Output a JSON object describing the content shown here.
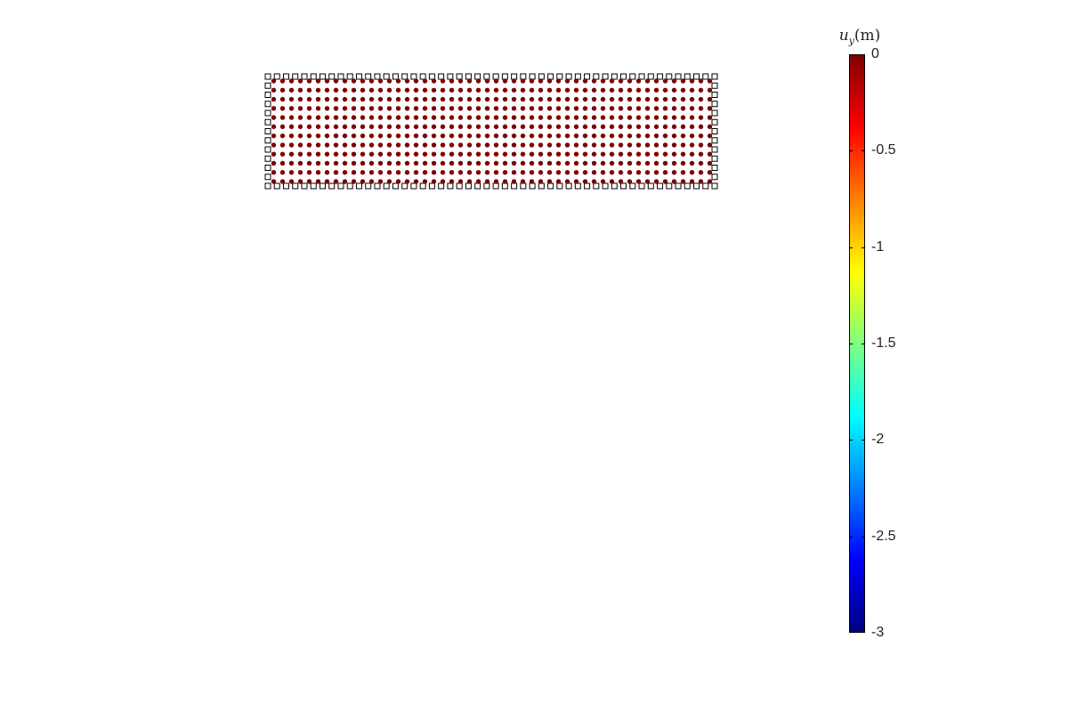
{
  "chart_data": {
    "type": "scatter",
    "title": "",
    "xlabel": "",
    "ylabel": "",
    "grid": false,
    "interior_particles": {
      "columns": 50,
      "rows": 12,
      "value": 0,
      "marker": "filled-circle",
      "color": "#7f0000"
    },
    "boundary_nodes": {
      "marker": "hollow-square",
      "edge_color": "#000000",
      "face_color": "#ffffff",
      "top_count": 50,
      "side_count": 13
    },
    "colorbar": {
      "label_var": "u",
      "label_sub": "y",
      "label_unit": "(m)",
      "colormap": "jet",
      "range": [
        -3,
        0
      ],
      "ticks": [
        0,
        -0.5,
        -1,
        -1.5,
        -2,
        -2.5,
        -3
      ],
      "tick_labels": [
        "0",
        "-0.5",
        "-1",
        "-1.5",
        "-2",
        "-2.5",
        "-3"
      ],
      "colors": [
        "#00007f",
        "#0000ff",
        "#007fff",
        "#00ffff",
        "#7fff7f",
        "#ffff00",
        "#ff7f00",
        "#ff0000",
        "#7f0000"
      ]
    }
  }
}
